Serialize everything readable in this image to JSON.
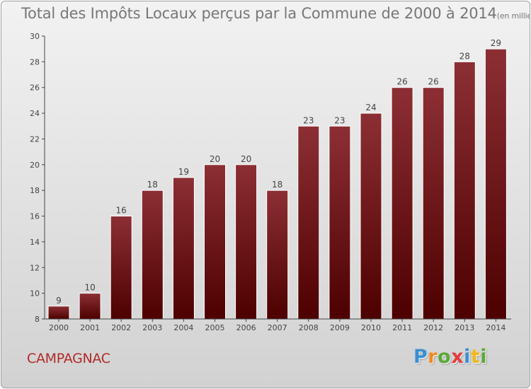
{
  "title": "Total des Impôts Locaux perçus par la Commune de 2000 à 2014",
  "unit_label": "(en milliers d'€)",
  "commune": "CAMPAGNAC",
  "logo": {
    "letters": [
      "P",
      "r",
      "o",
      "x",
      "i",
      "t",
      "i"
    ],
    "colors": [
      "#3a8fd1",
      "#f08a1c",
      "#5aa83a",
      "#e23c3c",
      "#3a8fd1",
      "#f0b81c",
      "#5aa83a"
    ]
  },
  "colors": {
    "bar_top": "#8c2f35",
    "bar_bottom": "#4d0000",
    "commune_text": "#b02a2a"
  },
  "chart_data": {
    "type": "bar",
    "title": "Total des Impôts Locaux perçus par la Commune de 2000 à 2014",
    "xlabel": "",
    "ylabel": "",
    "unit": "(en milliers d'€)",
    "categories": [
      "2000",
      "2001",
      "2002",
      "2003",
      "2004",
      "2005",
      "2006",
      "2007",
      "2008",
      "2009",
      "2010",
      "2011",
      "2012",
      "2013",
      "2014"
    ],
    "values": [
      9,
      10,
      16,
      18,
      19,
      20,
      20,
      18,
      23,
      23,
      24,
      26,
      26,
      28,
      29
    ],
    "ylim": [
      8,
      30
    ],
    "yticks": [
      8,
      10,
      12,
      14,
      16,
      18,
      20,
      22,
      24,
      26,
      28,
      30
    ],
    "grid": false,
    "legend": "none"
  }
}
